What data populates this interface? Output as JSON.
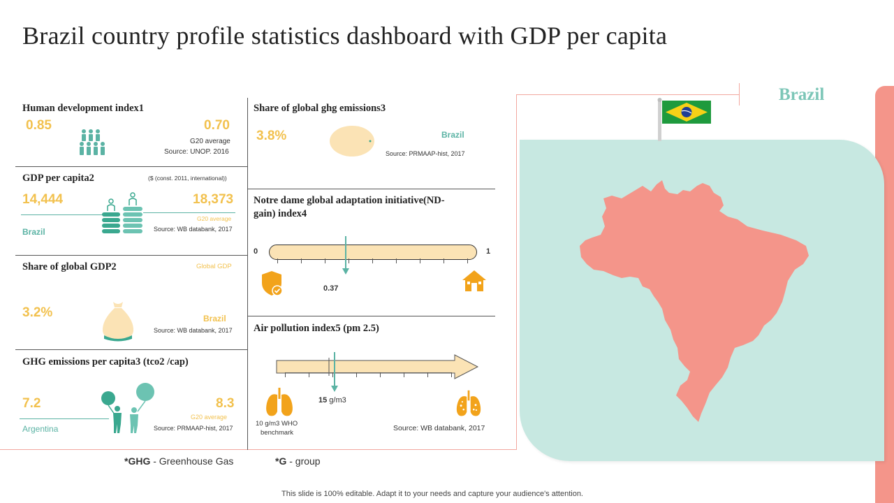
{
  "title": "Brazil country profile statistics dashboard with GDP per capita",
  "hdi": {
    "title": "Human development index1",
    "value": "0.85",
    "g20_value": "0.70",
    "g20_label": "G20 average",
    "source": "Source: UNOP.  2016"
  },
  "gdp": {
    "title": "GDP per capita2",
    "unit_note": "($ (const. 2011, international))",
    "value": "14,444",
    "country": "Brazil",
    "g20_value": "18,373",
    "g20_label": "G20 average",
    "source": "Source: WB databank, 2017"
  },
  "share_gdp": {
    "title": "Share of global GDP2",
    "global_label": "Global GDP",
    "value": "3.2%",
    "country": "Brazil",
    "source": "Source: WB databank, 2017"
  },
  "ghg_cap": {
    "title": "GHG emissions per capita3 (tco2 /cap)",
    "value": "7.2",
    "compare_label": "Argentina",
    "g20_value": "8.3",
    "g20_label": "G20 average",
    "source": "Source: PRMAAP-hist, 2017"
  },
  "ghg_share": {
    "title": "Share of global ghg emissions3",
    "value": "3.8%",
    "country": "Brazil",
    "source": "Source: PRMAAP-hist, 2017"
  },
  "ndgain": {
    "title_line1": "Notre dame global adaptation initiative(ND-",
    "title_line2": "gain) index4",
    "min": "0",
    "max": "1",
    "value_label": "0.37",
    "value": 0.37
  },
  "air": {
    "title": "Air pollution index5 (pm 2.5)",
    "value_label": "15 g/m3",
    "value_number": "15",
    "value_unit": " g/m3",
    "benchmark_line1": "10 g/m3 WHO",
    "benchmark_line2": "benchmark",
    "source": "Source: WB databank, 2017"
  },
  "map": {
    "country_label": "Brazil"
  },
  "footnotes": {
    "ghg_key": "*GHG",
    "ghg_text": " - Greenhouse  Gas",
    "g_key": "*G",
    "g_text": " - group"
  },
  "footer": "This slide is 100% editable. Adapt it to your needs and capture your audience's attention.",
  "colors": {
    "accent_yellow": "#f2c14e",
    "teal": "#5bb3a4",
    "light_teal": "#c7e8e1",
    "coral": "#f4958a",
    "beige": "#fbe3b5"
  }
}
